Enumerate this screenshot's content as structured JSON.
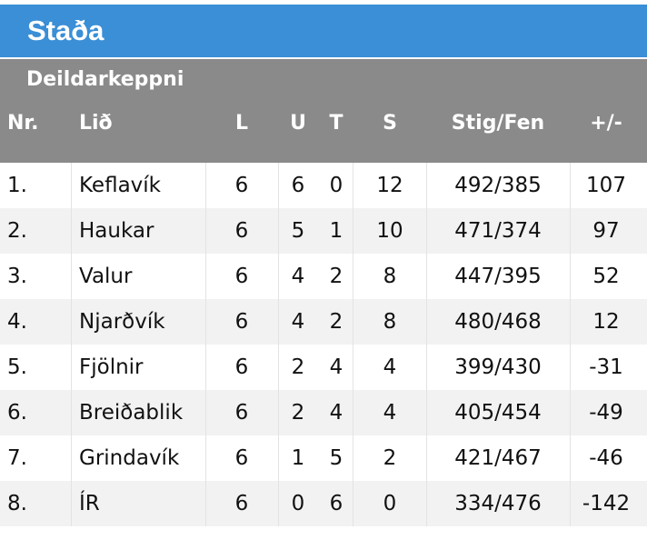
{
  "title": "Staða",
  "subtitle": "Deildarkeppni",
  "headers": {
    "nr": "Nr.",
    "lid": "Lið",
    "l": "L",
    "u": "U",
    "t": "T",
    "s": "S",
    "stig": "Stig/Fen",
    "diff": "+/-"
  },
  "rows": [
    {
      "nr": "1.",
      "lid": "Keflavík",
      "l": "6",
      "u": "6",
      "t": "0",
      "s": "12",
      "stig": "492/385",
      "diff": "107"
    },
    {
      "nr": "2.",
      "lid": "Haukar",
      "l": "6",
      "u": "5",
      "t": "1",
      "s": "10",
      "stig": "471/374",
      "diff": "97"
    },
    {
      "nr": "3.",
      "lid": "Valur",
      "l": "6",
      "u": "4",
      "t": "2",
      "s": "8",
      "stig": "447/395",
      "diff": "52"
    },
    {
      "nr": "4.",
      "lid": "Njarðvík",
      "l": "6",
      "u": "4",
      "t": "2",
      "s": "8",
      "stig": "480/468",
      "diff": "12"
    },
    {
      "nr": "5.",
      "lid": "Fjölnir",
      "l": "6",
      "u": "2",
      "t": "4",
      "s": "4",
      "stig": "399/430",
      "diff": "-31"
    },
    {
      "nr": "6.",
      "lid": "Breiðablik",
      "l": "6",
      "u": "2",
      "t": "4",
      "s": "4",
      "stig": "405/454",
      "diff": "-49"
    },
    {
      "nr": "7.",
      "lid": "Grindavík",
      "l": "6",
      "u": "1",
      "t": "5",
      "s": "2",
      "stig": "421/467",
      "diff": "-46"
    },
    {
      "nr": "8.",
      "lid": "ÍR",
      "l": "6",
      "u": "0",
      "t": "6",
      "s": "0",
      "stig": "334/476",
      "diff": "-142"
    }
  ],
  "colors": {
    "title_bar": "#3a8fd6",
    "header_bg": "#8a8a8a",
    "row_alt": "#f2f2f2"
  }
}
